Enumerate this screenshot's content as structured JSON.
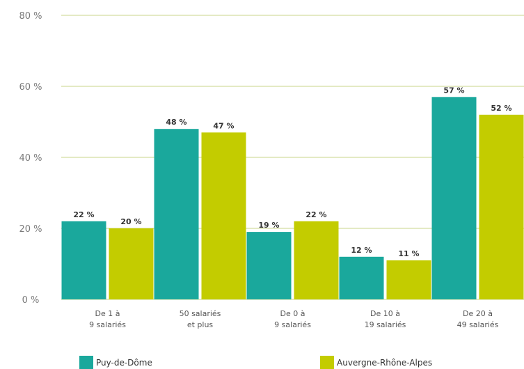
{
  "chart_data": {
    "type": "bar",
    "y_ticks": [
      "0 %",
      "20 %",
      "40 %",
      "60 %",
      "80 %"
    ],
    "ylim": [
      0,
      80
    ],
    "categories": [
      "De 1 à 9 salariés",
      "50 salariés et plus",
      "De 0 à 9 salariés",
      "De 10 à 19 salariés",
      "De 20 à 49 salariés"
    ],
    "series": [
      {
        "name": "Puy-de-Dôme",
        "color": "#1aa89c",
        "values": [
          22,
          48,
          19,
          12,
          57
        ]
      },
      {
        "name": "Auvergne-Rhône-Alpes",
        "color": "#c3cc00",
        "values": [
          20,
          47,
          22,
          11,
          52
        ]
      }
    ],
    "data_labels": [
      [
        "22 %",
        "48 %",
        "19 %",
        "12 %",
        "57 %"
      ],
      [
        "20 %",
        "47 %",
        "22 %",
        "11 %",
        "52 %"
      ]
    ],
    "grid": true,
    "legend_position": "bottom"
  },
  "legend": {
    "items": [
      {
        "label": "Puy-de-Dôme",
        "color": "#1aa89c"
      },
      {
        "label": "Auvergne-Rhône-Alpes",
        "color": "#c3cc00"
      }
    ]
  }
}
